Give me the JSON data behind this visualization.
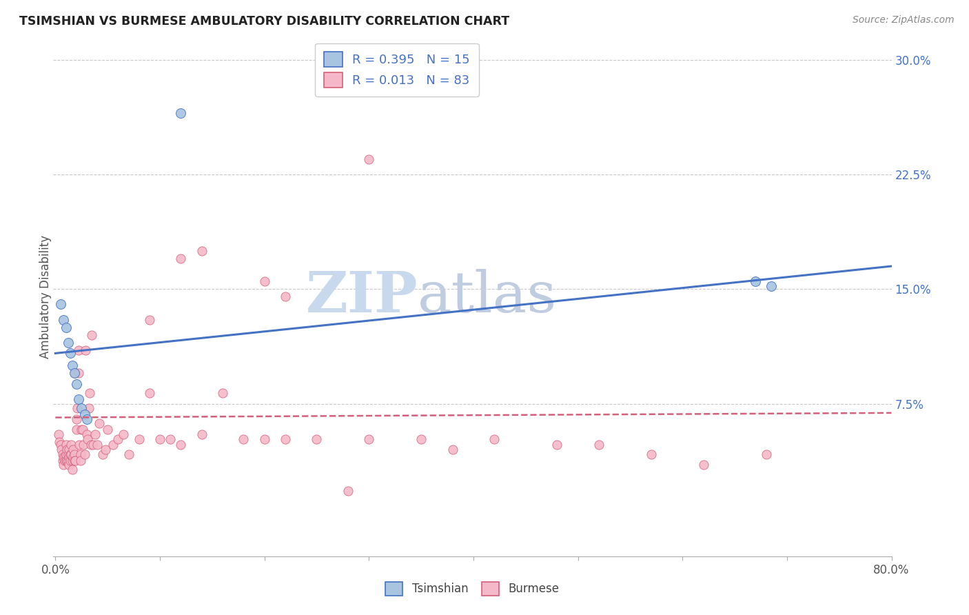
{
  "title": "TSIMSHIAN VS BURMESE AMBULATORY DISABILITY CORRELATION CHART",
  "source": "Source: ZipAtlas.com",
  "ylabel": "Ambulatory Disability",
  "xlim": [
    -0.002,
    0.8
  ],
  "ylim": [
    -0.025,
    0.315
  ],
  "yticks_right": [
    0.075,
    0.15,
    0.225,
    0.3
  ],
  "ytick_right_labels": [
    "7.5%",
    "15.0%",
    "22.5%",
    "30.0%"
  ],
  "legend_label1": "R = 0.395   N = 15",
  "legend_label2": "R = 0.013   N = 83",
  "tsimshian_color": "#a8c4e0",
  "burmese_color": "#f4b8c8",
  "trend_blue": "#4472c4",
  "trend_pink": "#d45f7a",
  "watermark_zip": "ZIP",
  "watermark_atlas": "atlas",
  "watermark_color_zip": "#c8d8ed",
  "watermark_color_atlas": "#c0cce0",
  "tsimshian_x": [
    0.005,
    0.008,
    0.01,
    0.012,
    0.014,
    0.016,
    0.018,
    0.02,
    0.022,
    0.025,
    0.028,
    0.03,
    0.12,
    0.67,
    0.685
  ],
  "tsimshian_y": [
    0.14,
    0.13,
    0.125,
    0.115,
    0.108,
    0.1,
    0.095,
    0.088,
    0.078,
    0.072,
    0.068,
    0.065,
    0.265,
    0.155,
    0.152
  ],
  "burmese_x": [
    0.003,
    0.004,
    0.005,
    0.006,
    0.007,
    0.007,
    0.008,
    0.008,
    0.009,
    0.009,
    0.01,
    0.01,
    0.01,
    0.011,
    0.011,
    0.012,
    0.012,
    0.013,
    0.013,
    0.013,
    0.014,
    0.014,
    0.015,
    0.015,
    0.016,
    0.016,
    0.017,
    0.017,
    0.018,
    0.018,
    0.019,
    0.019,
    0.02,
    0.02,
    0.021,
    0.022,
    0.022,
    0.023,
    0.024,
    0.024,
    0.025,
    0.026,
    0.027,
    0.028,
    0.029,
    0.03,
    0.031,
    0.032,
    0.033,
    0.034,
    0.035,
    0.036,
    0.038,
    0.04,
    0.042,
    0.045,
    0.048,
    0.05,
    0.055,
    0.06,
    0.065,
    0.07,
    0.08,
    0.09,
    0.1,
    0.11,
    0.12,
    0.14,
    0.16,
    0.18,
    0.2,
    0.22,
    0.25,
    0.28,
    0.3,
    0.35,
    0.38,
    0.42,
    0.48,
    0.52,
    0.57,
    0.62,
    0.68
  ],
  "burmese_y": [
    0.055,
    0.05,
    0.048,
    0.045,
    0.042,
    0.038,
    0.04,
    0.035,
    0.04,
    0.038,
    0.038,
    0.042,
    0.048,
    0.038,
    0.045,
    0.038,
    0.042,
    0.035,
    0.04,
    0.045,
    0.038,
    0.042,
    0.042,
    0.048,
    0.038,
    0.032,
    0.04,
    0.045,
    0.042,
    0.038,
    0.095,
    0.038,
    0.058,
    0.065,
    0.072,
    0.095,
    0.11,
    0.048,
    0.042,
    0.038,
    0.058,
    0.058,
    0.048,
    0.042,
    0.11,
    0.055,
    0.052,
    0.072,
    0.082,
    0.048,
    0.12,
    0.048,
    0.055,
    0.048,
    0.062,
    0.042,
    0.045,
    0.058,
    0.048,
    0.052,
    0.055,
    0.042,
    0.052,
    0.082,
    0.052,
    0.052,
    0.048,
    0.055,
    0.082,
    0.052,
    0.052,
    0.052,
    0.052,
    0.018,
    0.052,
    0.052,
    0.045,
    0.052,
    0.048,
    0.048,
    0.042,
    0.035,
    0.042
  ],
  "burmese_extra_x": [
    0.3,
    0.14,
    0.2,
    0.22,
    0.12,
    0.09
  ],
  "burmese_extra_y": [
    0.235,
    0.175,
    0.155,
    0.145,
    0.17,
    0.13
  ],
  "trend_blue_x0": 0.0,
  "trend_blue_y0": 0.108,
  "trend_blue_x1": 0.8,
  "trend_blue_y1": 0.165,
  "trend_pink_x0": 0.0,
  "trend_pink_y0": 0.066,
  "trend_pink_x1": 0.8,
  "trend_pink_y1": 0.069
}
